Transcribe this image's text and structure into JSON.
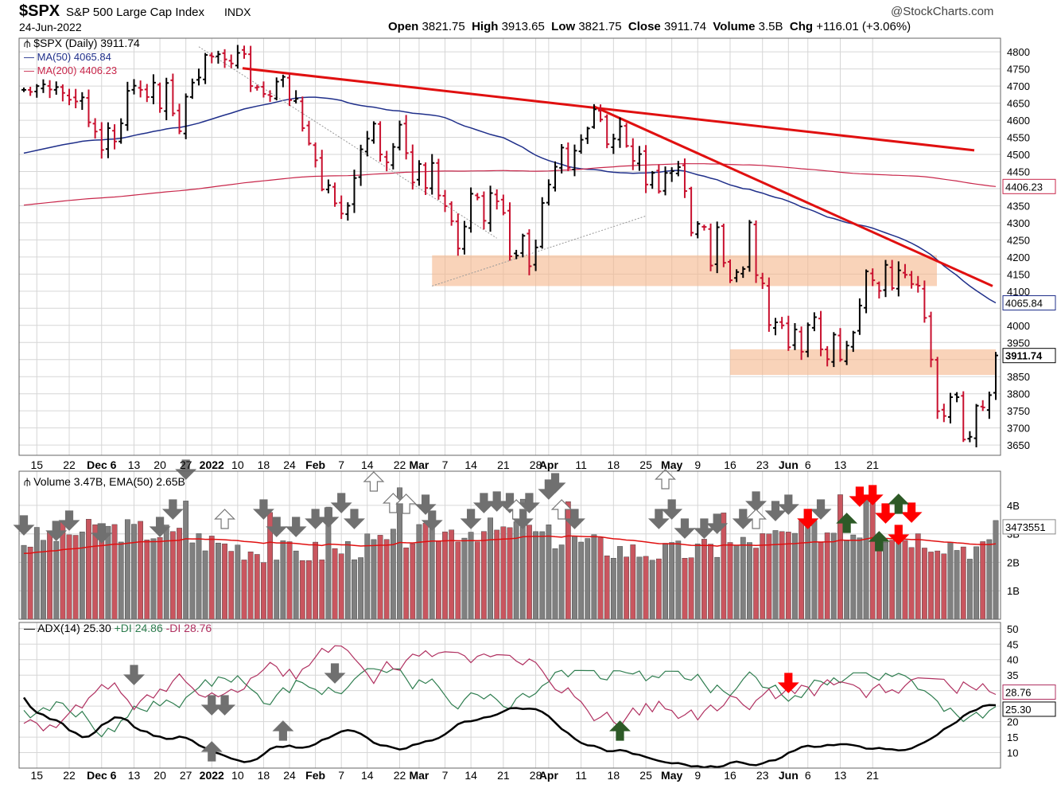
{
  "header": {
    "symbol": "$SPX",
    "name": "S&P 500 Large Cap Index",
    "exchange": "INDX",
    "date": "24-Jun-2022",
    "brand": "@StockCharts.com",
    "stats": {
      "open_label": "Open",
      "open": "3821.75",
      "high_label": "High",
      "high": "3913.65",
      "low_label": "Low",
      "low": "3821.75",
      "close_label": "Close",
      "close": "3911.74",
      "volume_label": "Volume",
      "volume": "3.5B",
      "chg_label": "Chg",
      "chg": "+116.01 (+3.06%)"
    }
  },
  "legend": {
    "price": "$SPX (Daily) 3911.74",
    "ma50": "MA(50) 4065.84",
    "ma200": "MA(200) 4406.23",
    "volume": "Volume 3.47B, EMA(50) 2.65B",
    "adx": "ADX(14) 25.30",
    "pdi": "+DI 24.86",
    "mdi": "-DI 28.76"
  },
  "price_tags": {
    "ma200": "4406.23",
    "close": "3911.74",
    "ma50": "4065.84"
  },
  "volume_tag": "3473551",
  "adx_tags": {
    "mdi": "28.76",
    "adx": "25.30"
  },
  "x_axis_labels": [
    "15",
    "22",
    "Dec 6",
    "13",
    "20",
    "27",
    "2022",
    "10",
    "18",
    "24",
    "Feb",
    "7",
    "14",
    "22",
    "Mar",
    "7",
    "14",
    "21",
    "28",
    "Apr",
    "11",
    "18",
    "25",
    "May",
    "9",
    "16",
    "23",
    "Jun",
    "6",
    "13",
    "21"
  ],
  "colors": {
    "up": "#000000",
    "down": "#c8102e",
    "ma50": "#1f2f8a",
    "ma200": "#c8264a",
    "zone": "#f5b58a",
    "trendline": "#e01010",
    "vol_up": "#808080",
    "vol_down": "#c9565f",
    "ema": "#e01010",
    "adx": "#000000",
    "pdi": "#2e7d4f",
    "mdi": "#b03060",
    "arrow_gray": "#707070",
    "arrow_red": "#ff0000",
    "arrow_green": "#2d5a27"
  },
  "chart_data": [
    {
      "type": "candlestick",
      "title": "$SPX S&P 500 Large Cap Index INDX",
      "ylim": [
        3620,
        4840
      ],
      "y_ticks": [
        3650,
        3700,
        3750,
        3800,
        3850,
        3900,
        3950,
        4000,
        4050,
        4100,
        4150,
        4200,
        4250,
        4300,
        4350,
        4400,
        4450,
        4500,
        4550,
        4600,
        4650,
        4700,
        4750,
        4800
      ],
      "close": [
        4689,
        4683,
        4700,
        4705,
        4690,
        4697,
        4680,
        4660,
        4655,
        4667,
        4594,
        4567,
        4513,
        4577,
        4538,
        4591,
        4686,
        4701,
        4689,
        4668,
        4710,
        4635,
        4709,
        4620,
        4568,
        4669,
        4710,
        4725,
        4791,
        4786,
        4793,
        4778,
        4766,
        4797,
        4794,
        4700,
        4697,
        4677,
        4670,
        4713,
        4727,
        4659,
        4663,
        4577,
        4532,
        4483,
        4398,
        4410,
        4357,
        4327,
        4350,
        4431,
        4515,
        4546,
        4590,
        4500,
        4477,
        4522,
        4587,
        4504,
        4418,
        4472,
        4402,
        4475,
        4380,
        4349,
        4305,
        4225,
        4289,
        4385,
        4374,
        4306,
        4387,
        4363,
        4329,
        4202,
        4204,
        4262,
        4173,
        4228,
        4358,
        4412,
        4464,
        4520,
        4461,
        4511,
        4543,
        4576,
        4632,
        4602,
        4530,
        4546,
        4582,
        4525,
        4481,
        4501,
        4412,
        4446,
        4392,
        4446,
        4451,
        4463,
        4393,
        4271,
        4297,
        4288,
        4175,
        4287,
        4183,
        4132,
        4156,
        4165,
        4301,
        4147,
        4123,
        4001,
        4009,
        4000,
        3936,
        3988,
        3923,
        4001,
        4024,
        3930,
        3901,
        3973,
        3900,
        3941,
        3979,
        4058,
        4158,
        4132,
        4101,
        4177,
        4109,
        4161,
        4148,
        4121,
        4116,
        4022,
        3900,
        3749,
        3735,
        3790,
        3790,
        3666,
        3674,
        3765,
        3760,
        3796,
        3912
      ],
      "ma50_end": 4065.84,
      "ma200_end": 4406.23,
      "support_zones": [
        [
          4115,
          4205
        ],
        [
          3855,
          3930
        ]
      ],
      "annotations": [
        "4800",
        "4750",
        "4700",
        "4650",
        "4600",
        "4550",
        "4500",
        "4450",
        "4350",
        "4300",
        "4250",
        "4200",
        "4150",
        "4100",
        "4000",
        "3950",
        "3850",
        "3800",
        "3750",
        "3700",
        "3650"
      ]
    },
    {
      "type": "bar",
      "title": "Volume",
      "y_ticks": [
        "1B",
        "2B",
        "3B",
        "4B"
      ],
      "ylim": [
        0,
        5.2
      ],
      "ema_end": 2.65,
      "last_volume": 3.47
    },
    {
      "type": "line",
      "title": "ADX(14)",
      "ylim": [
        5,
        52
      ],
      "y_ticks": [
        "10",
        "15",
        "20",
        "25",
        "30",
        "35",
        "40",
        "45",
        "50"
      ],
      "series": [
        {
          "name": "ADX(14)",
          "last": 25.3
        },
        {
          "name": "+DI",
          "last": 24.86
        },
        {
          "name": "-DI",
          "last": 28.76
        }
      ]
    }
  ]
}
